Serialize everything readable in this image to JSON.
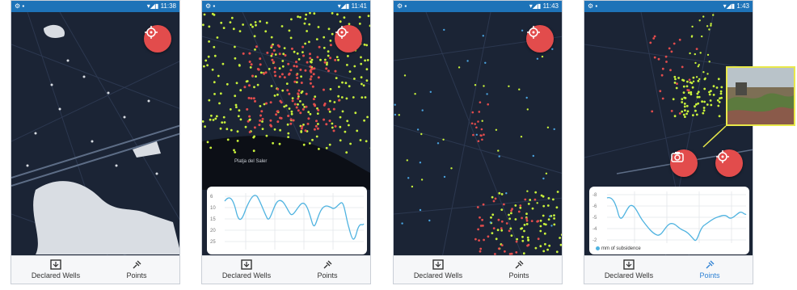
{
  "screens": [
    {
      "time": "11:38",
      "nav": {
        "wells": "Declared Wells",
        "points": "Points"
      }
    },
    {
      "time": "11:41",
      "nav": {
        "wells": "Declared Wells",
        "points": "Points"
      },
      "place_label": "Platja del Saler",
      "chart": {
        "yticks": [
          "6",
          "10",
          "15",
          "20",
          "25"
        ]
      }
    },
    {
      "time": "11:43",
      "nav": {
        "wells": "Declared Wells",
        "points": "Points"
      }
    },
    {
      "time": "1:43",
      "nav": {
        "wells": "Declared Wells",
        "points": "Points"
      },
      "chart": {
        "yticks": [
          "-8",
          "-6",
          "-5",
          "-4",
          "-2"
        ],
        "legend": "mm of subsidence"
      }
    }
  ],
  "colors": {
    "status_bar": "#1e73b8",
    "map_bg": "#1b2435",
    "fab": "#e24c4c",
    "nav_active": "#2f82d4",
    "series": "#4fb3e0",
    "point_yellow": "#c9f23b",
    "point_red": "#e24c4c",
    "point_blue": "#4aa3df"
  }
}
